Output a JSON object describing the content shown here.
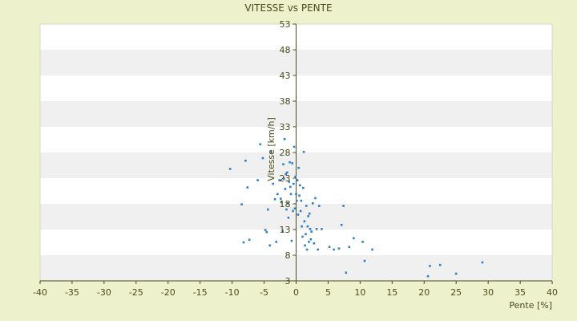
{
  "chart_data": {
    "type": "scatter",
    "title": "VITESSE vs PENTE",
    "xlabel": "Pente [%]",
    "ylabel": "Vitesse [km/h]",
    "xlim": [
      -40,
      40
    ],
    "ylim": [
      3,
      53
    ],
    "x_ticks": [
      -40,
      -35,
      -30,
      -25,
      -20,
      -15,
      -10,
      -5,
      0,
      5,
      10,
      15,
      20,
      25,
      30,
      35,
      40
    ],
    "x_tick_labels": [
      "-40",
      "-35",
      "-30",
      "-25",
      "-20",
      "-15",
      "-10",
      "-5",
      "0",
      "5",
      "10",
      "15",
      "20",
      "25",
      "30",
      "35",
      "40"
    ],
    "y_ticks": [
      3,
      8,
      13,
      18,
      23,
      28,
      33,
      38,
      43,
      48,
      53
    ],
    "y_tick_labels": [
      "3",
      "8",
      "13",
      "18",
      "23",
      "28",
      "33",
      "38",
      "43",
      "48",
      "53"
    ],
    "grid": true,
    "legend": "none",
    "colors": {
      "background": "#eef2cc",
      "plot_band_light": "#ffffff",
      "plot_band_dark": "#f0f0f0",
      "axis": "#4a4a1a",
      "marker": "#2f7fc8"
    },
    "series": [
      {
        "values_xy": [
          [
            -10.3,
            24.8
          ],
          [
            -8.5,
            17.9
          ],
          [
            -8.2,
            10.5
          ],
          [
            -7.9,
            26.4
          ],
          [
            -7.6,
            21.2
          ],
          [
            -7.3,
            11.0
          ],
          [
            -6.0,
            22.6
          ],
          [
            -5.6,
            29.6
          ],
          [
            -5.2,
            26.9
          ],
          [
            -4.8,
            12.9
          ],
          [
            -4.6,
            12.5
          ],
          [
            -4.4,
            16.9
          ],
          [
            -4.1,
            9.9
          ],
          [
            -3.9,
            28.1
          ],
          [
            -3.6,
            21.9
          ],
          [
            -3.3,
            18.9
          ],
          [
            -3.1,
            10.6
          ],
          [
            -2.9,
            19.9
          ],
          [
            -2.6,
            22.6
          ],
          [
            -2.4,
            19.0
          ],
          [
            -2.3,
            18.3
          ],
          [
            -2.1,
            12.7
          ],
          [
            -2.0,
            25.7
          ],
          [
            -1.9,
            22.9
          ],
          [
            -1.8,
            30.6
          ],
          [
            -1.7,
            20.9
          ],
          [
            -1.6,
            23.8
          ],
          [
            -1.5,
            16.9
          ],
          [
            -1.4,
            24.1
          ],
          [
            -1.3,
            18.1
          ],
          [
            -1.2,
            15.3
          ],
          [
            -1.1,
            22.3
          ],
          [
            -1.0,
            26.1
          ],
          [
            -0.9,
            21.3
          ],
          [
            -0.8,
            19.9
          ],
          [
            -0.7,
            10.8
          ],
          [
            -0.6,
            25.9
          ],
          [
            -0.5,
            16.6
          ],
          [
            -0.4,
            21.9
          ],
          [
            -0.3,
            29.1
          ],
          [
            -0.2,
            17.1
          ],
          [
            -0.1,
            23.3
          ],
          [
            0.0,
            19.9
          ],
          [
            0.1,
            18.6
          ],
          [
            0.2,
            22.6
          ],
          [
            0.3,
            15.9
          ],
          [
            0.4,
            25.0
          ],
          [
            0.5,
            19.6
          ],
          [
            0.6,
            21.6
          ],
          [
            0.7,
            16.6
          ],
          [
            0.8,
            18.6
          ],
          [
            0.9,
            13.6
          ],
          [
            1.0,
            11.6
          ],
          [
            1.1,
            21.1
          ],
          [
            1.2,
            28.1
          ],
          [
            1.3,
            14.6
          ],
          [
            1.4,
            9.9
          ],
          [
            1.5,
            12.1
          ],
          [
            1.6,
            17.6
          ],
          [
            1.7,
            9.1
          ],
          [
            1.8,
            13.6
          ],
          [
            1.9,
            15.6
          ],
          [
            2.0,
            10.6
          ],
          [
            2.1,
            16.1
          ],
          [
            2.2,
            13.1
          ],
          [
            2.3,
            11.1
          ],
          [
            2.4,
            12.6
          ],
          [
            2.6,
            18.1
          ],
          [
            2.8,
            10.3
          ],
          [
            3.0,
            19.1
          ],
          [
            3.2,
            13.1
          ],
          [
            3.4,
            9.1
          ],
          [
            3.6,
            17.6
          ],
          [
            4.0,
            13.1
          ],
          [
            5.2,
            9.6
          ],
          [
            5.9,
            9.1
          ],
          [
            6.7,
            9.3
          ],
          [
            7.1,
            13.9
          ],
          [
            7.4,
            17.6
          ],
          [
            7.8,
            4.6
          ],
          [
            8.3,
            9.6
          ],
          [
            9.0,
            11.3
          ],
          [
            10.4,
            10.6
          ],
          [
            10.7,
            6.9
          ],
          [
            11.9,
            9.1
          ],
          [
            20.6,
            3.9
          ],
          [
            20.9,
            5.9
          ],
          [
            22.5,
            6.1
          ],
          [
            25.0,
            4.4
          ],
          [
            29.1,
            6.6
          ]
        ]
      }
    ]
  }
}
